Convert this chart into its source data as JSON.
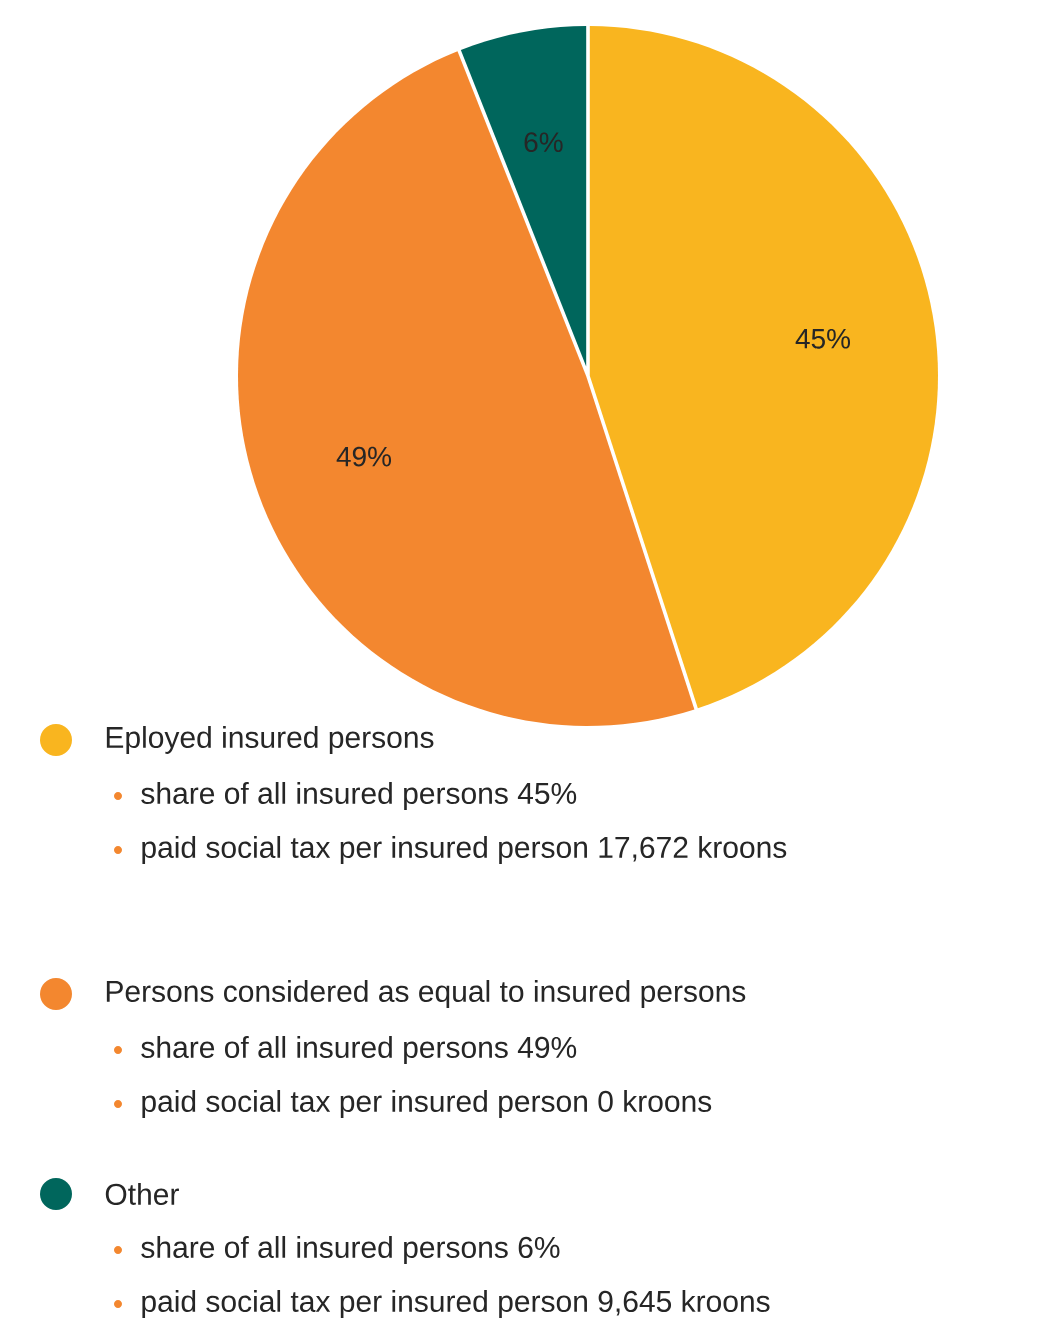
{
  "chart_data": {
    "type": "pie",
    "categories": [
      "Eployed insured persons",
      "Persons considered as equal to insured persons",
      "Other"
    ],
    "values": [
      45,
      49,
      6
    ],
    "colors": [
      "#f9b51f",
      "#f3872f",
      "#00665c"
    ],
    "value_labels": [
      "45%",
      "49%",
      "6%"
    ],
    "legend": "bottom",
    "annotations": [
      "share of all insured persons 45%",
      "paid social tax per insured person 17,672 kroons",
      "share of all insured persons 49%",
      "paid social tax per insured person 0 kroons",
      "share of all insured persons 6%",
      "paid social tax per insured person 9,645 kroons"
    ]
  }
}
